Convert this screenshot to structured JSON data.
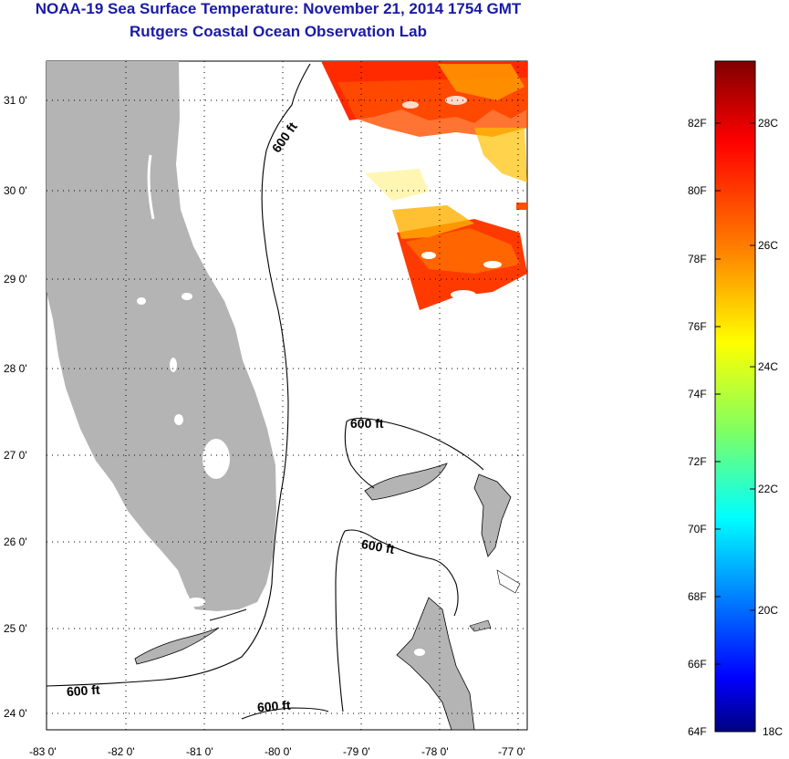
{
  "title": {
    "line1": "NOAA-19 Sea Surface Temperature:  November 21, 2014 1754 GMT",
    "line2": "Rutgers Coastal Ocean Observation Lab"
  },
  "map": {
    "lat_ticks": [
      "31 0'",
      "30 0'",
      "29 0'",
      "28 0'",
      "27 0'",
      "26 0'",
      "25 0'",
      "24 0'"
    ],
    "lon_ticks": [
      "-83 0'",
      "-82 0'",
      "-81 0'",
      "-80 0'",
      "-79 0'",
      "-78 0'",
      "-77 0'"
    ],
    "contour_labels": [
      "600 ft",
      "600 ft",
      "600 ft",
      "600 ft",
      "600 ft"
    ],
    "land_color": "#b4b4b4"
  },
  "colorbar": {
    "f_labels": [
      "82F",
      "80F",
      "78F",
      "76F",
      "74F",
      "72F",
      "70F",
      "68F",
      "66F",
      "64F"
    ],
    "c_labels": [
      "28C",
      "26C",
      "24C",
      "22C",
      "20C",
      "18C"
    ],
    "gradient": [
      "#800000",
      "#ff0000",
      "#ff8000",
      "#ffff00",
      "#80ff80",
      "#00ffff",
      "#0080ff",
      "#0000ff",
      "#000080"
    ]
  }
}
